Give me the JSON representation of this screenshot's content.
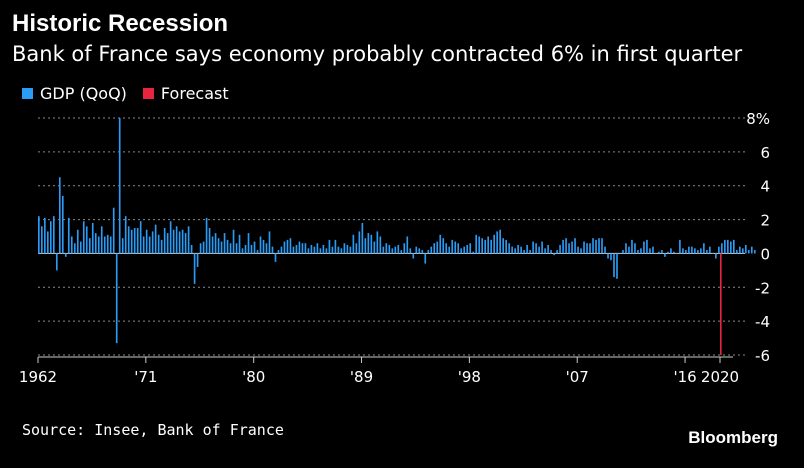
{
  "header": {
    "title": "Historic Recession",
    "subtitle": "Bank of France says economy probably contracted 6% in first quarter"
  },
  "legend": [
    {
      "label": "GDP (QoQ)",
      "color": "#2b9cf5"
    },
    {
      "label": "Forecast",
      "color": "#e8253f"
    }
  ],
  "footer": {
    "source": "Source: Insee, Bank of France",
    "brand": "Bloomberg"
  },
  "chart_data": {
    "type": "bar",
    "title": "Historic Recession",
    "subtitle": "Bank of France says economy probably contracted 6% in first quarter",
    "x_tick_labels": [
      "1962",
      "'71",
      "'80",
      "'89",
      "'98",
      "'07",
      "'16",
      "2020"
    ],
    "x_tick_years": [
      1962,
      1971,
      1980,
      1989,
      1998,
      2007,
      2016,
      2020
    ],
    "y_ticks": [
      8,
      6,
      4,
      2,
      0,
      -2,
      -4,
      -6
    ],
    "y_tick_labels": [
      "8%",
      "6",
      "4",
      "2",
      "0",
      "-2",
      "-4",
      "-6"
    ],
    "ylim": [
      -6,
      8
    ],
    "x_range": [
      1962.0,
      2020.0
    ],
    "grid": "horizontal dotted",
    "legend_position": "top-left",
    "start": "1962 Q1",
    "frequency": "quarterly",
    "series": [
      {
        "name": "GDP (QoQ)",
        "color": "#2b9cf5",
        "values": [
          2.2,
          1.6,
          2.1,
          1.3,
          1.9,
          2.2,
          -1.0,
          4.5,
          3.4,
          -0.2,
          2.1,
          1.0,
          0.6,
          1.4,
          0.7,
          1.9,
          1.6,
          0.9,
          1.8,
          1.2,
          1.0,
          1.6,
          1.0,
          1.1,
          1.0,
          2.7,
          -5.3,
          8.0,
          0.9,
          2.2,
          1.6,
          1.4,
          1.5,
          1.5,
          1.9,
          1.0,
          1.4,
          1.0,
          1.3,
          1.7,
          1.1,
          0.8,
          1.5,
          1.2,
          1.9,
          1.4,
          1.6,
          1.3,
          1.4,
          1.2,
          1.6,
          0.5,
          -1.8,
          -0.8,
          0.6,
          0.7,
          2.1,
          1.5,
          1.0,
          1.2,
          0.9,
          0.7,
          1.2,
          0.8,
          0.6,
          1.4,
          0.6,
          1.1,
          0.3,
          0.5,
          1.2,
          0.5,
          0.7,
          0.2,
          1.0,
          0.8,
          0.6,
          1.3,
          0.4,
          -0.5,
          0.2,
          0.4,
          0.7,
          0.8,
          0.9,
          0.4,
          0.5,
          0.7,
          0.6,
          0.6,
          0.3,
          0.5,
          0.4,
          0.6,
          0.3,
          0.5,
          0.3,
          0.8,
          0.4,
          0.8,
          0.4,
          0.3,
          0.6,
          0.5,
          0.4,
          1.1,
          0.6,
          1.3,
          1.8,
          0.9,
          1.2,
          1.1,
          0.7,
          1.3,
          1.0,
          0.4,
          0.6,
          0.5,
          0.3,
          0.4,
          0.5,
          0.2,
          0.6,
          1.0,
          0.3,
          -0.3,
          0.4,
          0.3,
          0.2,
          -0.6,
          0.2,
          0.4,
          0.6,
          0.7,
          1.1,
          0.9,
          0.6,
          0.4,
          0.8,
          0.7,
          0.6,
          0.3,
          0.4,
          0.5,
          0.6,
          0.1,
          1.1,
          1.0,
          0.9,
          0.8,
          1.0,
          0.8,
          1.1,
          1.3,
          1.4,
          0.9,
          0.8,
          0.6,
          0.4,
          0.3,
          0.5,
          0.4,
          0.2,
          0.5,
          0.2,
          0.7,
          0.6,
          0.4,
          0.7,
          0.3,
          0.5,
          0.2,
          -0.1,
          0.2,
          0.5,
          0.8,
          0.9,
          0.6,
          0.7,
          0.9,
          0.4,
          0.3,
          0.7,
          0.6,
          0.6,
          0.9,
          0.8,
          0.9,
          0.9,
          0.4,
          -0.3,
          -0.4,
          -1.4,
          -1.5,
          0.0,
          0.2,
          0.6,
          0.4,
          0.8,
          0.6,
          0.2,
          0.3,
          0.7,
          0.8,
          0.3,
          0.4,
          0.0,
          0.1,
          0.2,
          -0.2,
          0.1,
          0.3,
          0.1,
          0.0,
          0.8,
          0.3,
          0.2,
          0.4,
          0.4,
          0.3,
          0.2,
          0.3,
          0.6,
          0.2,
          0.4,
          0.0,
          -0.3,
          0.4,
          0.6,
          0.8,
          0.8,
          0.7,
          0.8,
          0.2,
          0.4,
          0.3,
          0.5,
          0.2,
          0.4,
          0.2
        ]
      },
      {
        "name": "Forecast",
        "color": "#e8253f",
        "values": [
          -6.0
        ],
        "period": "2020 Q1"
      }
    ]
  }
}
